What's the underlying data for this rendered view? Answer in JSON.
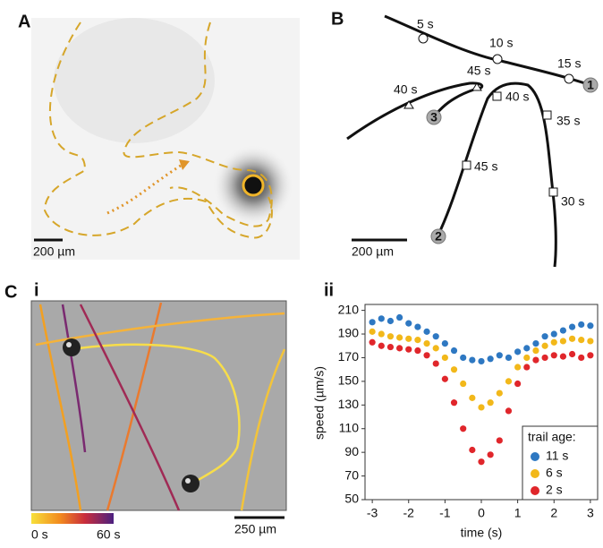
{
  "panels": {
    "A": {
      "label": "A",
      "scale_bar": "200 µm"
    },
    "B": {
      "label": "B",
      "scale_bar": "200 µm",
      "time_labels": [
        "5 s",
        "10 s",
        "15 s",
        "45 s",
        "40 s",
        "40 s",
        "35 s",
        "45 s",
        "30 s"
      ],
      "trails": [
        "1",
        "2",
        "3"
      ]
    },
    "C": {
      "label": "C",
      "sub_i": "i",
      "sub_ii": "ii",
      "scale_bar": "250 µm",
      "colorbar_min": "0 s",
      "colorbar_max": "60 s"
    }
  },
  "chart_data": {
    "type": "scatter",
    "xlabel": "time (s)",
    "ylabel": "speed (µm/s)",
    "xlim": [
      -3.2,
      3.2
    ],
    "ylim": [
      50,
      215
    ],
    "xticks": [
      -3,
      -2,
      -1,
      0,
      1,
      2,
      3
    ],
    "yticks": [
      50,
      70,
      90,
      110,
      130,
      150,
      170,
      190,
      210
    ],
    "legend_title": "trail age:",
    "legend": "lower right",
    "x": [
      -3,
      -2.75,
      -2.5,
      -2.25,
      -2,
      -1.75,
      -1.5,
      -1.25,
      -1,
      -0.75,
      -0.5,
      -0.25,
      0,
      0.25,
      0.5,
      0.75,
      1,
      1.25,
      1.5,
      1.75,
      2,
      2.25,
      2.5,
      2.75,
      3
    ],
    "series": [
      {
        "name": "11 s",
        "color": "#2e78c2",
        "values": [
          200,
          203,
          201,
          204,
          199,
          196,
          192,
          188,
          182,
          176,
          170,
          168,
          167,
          169,
          172,
          170,
          175,
          178,
          182,
          188,
          190,
          193,
          196,
          198,
          197
        ]
      },
      {
        "name": "6 s",
        "color": "#f2b81a",
        "values": [
          192,
          190,
          188,
          187,
          186,
          185,
          182,
          178,
          170,
          160,
          148,
          136,
          128,
          132,
          140,
          150,
          162,
          170,
          176,
          180,
          183,
          184,
          186,
          185,
          184
        ]
      },
      {
        "name": "2 s",
        "color": "#e0262b",
        "values": [
          183,
          180,
          179,
          178,
          177,
          176,
          172,
          165,
          152,
          132,
          110,
          92,
          82,
          88,
          100,
          125,
          148,
          162,
          168,
          170,
          172,
          171,
          173,
          170,
          172
        ]
      }
    ]
  }
}
